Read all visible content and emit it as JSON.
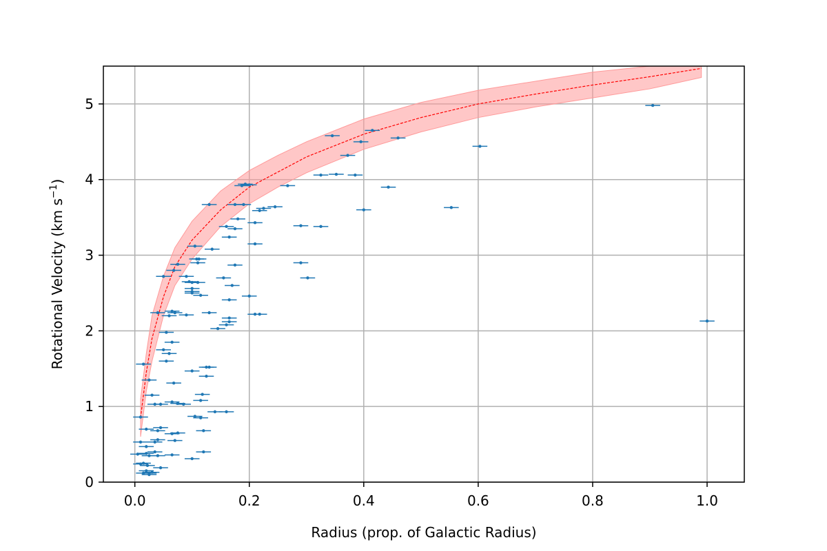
{
  "chart_data": {
    "type": "scatter",
    "title": "",
    "xlabel": "Radius (prop. of Galactic Radius)",
    "ylabel": "Rotational Velocity (km s",
    "ylabel_sup": "−1",
    "ylabel_close": ")",
    "xlim": [
      -0.055,
      1.065
    ],
    "ylim": [
      0,
      5.5
    ],
    "xticks": [
      0.0,
      0.2,
      0.4,
      0.6,
      0.8,
      1.0
    ],
    "xtick_labels": [
      "0.0",
      "0.2",
      "0.4",
      "0.6",
      "0.8",
      "1.0"
    ],
    "yticks": [
      0,
      1,
      2,
      3,
      4,
      5
    ],
    "ytick_labels": [
      "0",
      "1",
      "2",
      "3",
      "4",
      "5"
    ],
    "grid": true,
    "colors": {
      "points": "#1f77b4",
      "fit_line": "#ff0000",
      "fit_band": "#ff9999"
    },
    "fit": {
      "style": "dashed",
      "x": [
        0.01,
        0.02,
        0.03,
        0.05,
        0.07,
        0.1,
        0.15,
        0.2,
        0.25,
        0.3,
        0.4,
        0.5,
        0.6,
        0.7,
        0.8,
        0.9,
        0.99
      ],
      "y": [
        0.85,
        1.45,
        1.9,
        2.45,
        2.85,
        3.2,
        3.6,
        3.9,
        4.1,
        4.3,
        4.6,
        4.82,
        5.0,
        5.13,
        5.25,
        5.36,
        5.47
      ],
      "band_lower": [
        0.6,
        1.2,
        1.6,
        2.2,
        2.6,
        2.95,
        3.38,
        3.68,
        3.9,
        4.09,
        4.4,
        4.63,
        4.82,
        4.96,
        5.08,
        5.2,
        5.35
      ],
      "band_upper": [
        1.1,
        1.7,
        2.2,
        2.72,
        3.1,
        3.45,
        3.85,
        4.12,
        4.32,
        4.5,
        4.8,
        5.02,
        5.18,
        5.3,
        5.42,
        5.5,
        5.55
      ]
    },
    "series": [
      {
        "xerr": 0.013,
        "points": [
          [
            0.905,
            4.98
          ],
          [
            1.0,
            2.13
          ],
          [
            0.603,
            4.44
          ],
          [
            0.553,
            3.63
          ],
          [
            0.46,
            4.55
          ],
          [
            0.415,
            4.65
          ],
          [
            0.395,
            4.5
          ],
          [
            0.345,
            4.58
          ],
          [
            0.372,
            4.32
          ],
          [
            0.4,
            3.6
          ],
          [
            0.443,
            3.9
          ],
          [
            0.385,
            4.06
          ],
          [
            0.352,
            4.07
          ],
          [
            0.325,
            4.06
          ],
          [
            0.267,
            3.92
          ],
          [
            0.302,
            2.7
          ],
          [
            0.29,
            2.9
          ],
          [
            0.29,
            3.39
          ],
          [
            0.325,
            3.38
          ],
          [
            0.245,
            3.64
          ],
          [
            0.225,
            3.62
          ],
          [
            0.218,
            3.59
          ],
          [
            0.21,
            3.43
          ],
          [
            0.21,
            3.15
          ],
          [
            0.2,
            3.93
          ],
          [
            0.193,
            3.94
          ],
          [
            0.187,
            3.92
          ],
          [
            0.19,
            3.67
          ],
          [
            0.175,
            3.67
          ],
          [
            0.13,
            3.67
          ],
          [
            0.18,
            3.48
          ],
          [
            0.175,
            3.35
          ],
          [
            0.16,
            3.38
          ],
          [
            0.165,
            3.24
          ],
          [
            0.135,
            3.08
          ],
          [
            0.105,
            3.12
          ],
          [
            0.112,
            2.95
          ],
          [
            0.11,
            2.9
          ],
          [
            0.108,
            2.95
          ],
          [
            0.175,
            2.87
          ],
          [
            0.075,
            2.88
          ],
          [
            0.068,
            2.8
          ],
          [
            0.05,
            2.72
          ],
          [
            0.09,
            2.72
          ],
          [
            0.1,
            2.64
          ],
          [
            0.11,
            2.64
          ],
          [
            0.095,
            2.65
          ],
          [
            0.155,
            2.7
          ],
          [
            0.17,
            2.6
          ],
          [
            0.1,
            2.56
          ],
          [
            0.1,
            2.52
          ],
          [
            0.115,
            2.47
          ],
          [
            0.1,
            2.5
          ],
          [
            0.165,
            2.41
          ],
          [
            0.2,
            2.46
          ],
          [
            0.065,
            2.26
          ],
          [
            0.07,
            2.24
          ],
          [
            0.06,
            2.2
          ],
          [
            0.04,
            2.24
          ],
          [
            0.09,
            2.21
          ],
          [
            0.13,
            2.24
          ],
          [
            0.165,
            2.17
          ],
          [
            0.165,
            2.12
          ],
          [
            0.16,
            2.08
          ],
          [
            0.145,
            2.03
          ],
          [
            0.21,
            2.22
          ],
          [
            0.218,
            2.22
          ],
          [
            0.055,
            1.98
          ],
          [
            0.065,
            1.85
          ],
          [
            0.05,
            1.75
          ],
          [
            0.06,
            1.7
          ],
          [
            0.055,
            1.6
          ],
          [
            0.015,
            1.56
          ],
          [
            0.13,
            1.52
          ],
          [
            0.125,
            1.52
          ],
          [
            0.1,
            1.47
          ],
          [
            0.125,
            1.4
          ],
          [
            0.025,
            1.35
          ],
          [
            0.068,
            1.31
          ],
          [
            0.118,
            1.16
          ],
          [
            0.03,
            1.15
          ],
          [
            0.115,
            1.08
          ],
          [
            0.065,
            1.06
          ],
          [
            0.075,
            1.04
          ],
          [
            0.085,
            1.03
          ],
          [
            0.045,
            1.03
          ],
          [
            0.035,
            1.03
          ],
          [
            0.16,
            0.93
          ],
          [
            0.14,
            0.93
          ],
          [
            0.105,
            0.87
          ],
          [
            0.115,
            0.85
          ],
          [
            0.01,
            0.86
          ],
          [
            0.02,
            0.7
          ],
          [
            0.045,
            0.72
          ],
          [
            0.04,
            0.68
          ],
          [
            0.12,
            0.68
          ],
          [
            0.075,
            0.65
          ],
          [
            0.065,
            0.64
          ],
          [
            0.07,
            0.55
          ],
          [
            0.04,
            0.56
          ],
          [
            0.035,
            0.53
          ],
          [
            0.01,
            0.53
          ],
          [
            0.02,
            0.47
          ],
          [
            0.12,
            0.4
          ],
          [
            0.035,
            0.4
          ],
          [
            0.02,
            0.38
          ],
          [
            0.005,
            0.37
          ],
          [
            0.04,
            0.35
          ],
          [
            0.065,
            0.36
          ],
          [
            0.025,
            0.35
          ],
          [
            0.1,
            0.31
          ],
          [
            0.015,
            0.25
          ],
          [
            0.022,
            0.22
          ],
          [
            0.01,
            0.24
          ],
          [
            0.045,
            0.19
          ],
          [
            0.02,
            0.15
          ],
          [
            0.025,
            0.12
          ],
          [
            0.03,
            0.13
          ],
          [
            0.015,
            0.12
          ],
          [
            0.025,
            0.1
          ]
        ]
      }
    ]
  }
}
